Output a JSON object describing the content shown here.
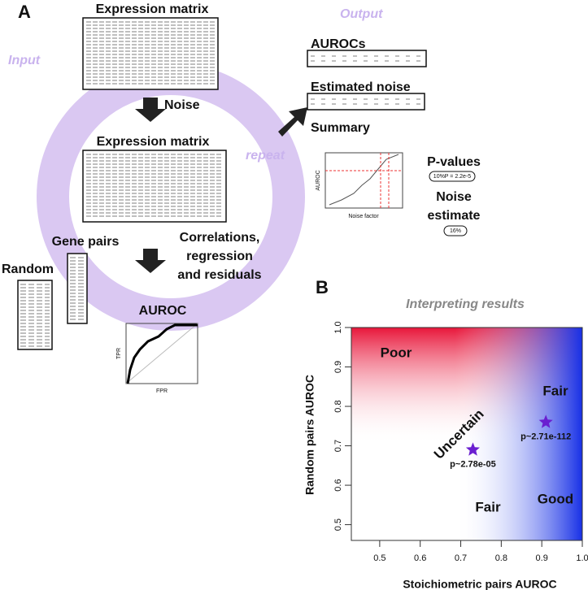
{
  "panel_a": {
    "label": "A",
    "input": "Input",
    "output": "Output",
    "repeat": "repeat",
    "expression_matrix_1": "Expression matrix",
    "noise": "Noise",
    "expression_matrix_2": "Expression matrix",
    "correlations": [
      "Correlations,",
      "regression",
      "and residuals"
    ],
    "gene_pairs": "Gene pairs",
    "random": "Random",
    "auroc": "AUROC",
    "roc_axes": {
      "x": "FPR",
      "y": "TPR"
    },
    "aurocs": "AUROCs",
    "estimated_noise": "Estimated noise",
    "summary": "Summary",
    "summary_axes": {
      "x": "Noise factor",
      "y": "AUROC"
    },
    "p_values": "P-values",
    "p_value": "10%P = 2.2e-5",
    "noise_estimate": [
      "Noise",
      "estimate"
    ],
    "noise_value": "16%"
  },
  "panel_b_label": "B",
  "chart_data": {
    "type": "scatter",
    "title": "Interpreting results",
    "x_label": "Stoichiometric pairs AUROC",
    "y_label": "Random pairs AUROC",
    "xlim": [
      0.43,
      1.0
    ],
    "ylim": [
      0.46,
      1.0
    ],
    "xticks": [
      0.5,
      0.6,
      0.7,
      0.8,
      0.9,
      {
        "value": 1,
        "label": "1.0"
      }
    ],
    "yticks": [
      0.5,
      0.6,
      0.7,
      0.8,
      0.9,
      {
        "value": 1,
        "label": "1.0"
      }
    ],
    "regions": [
      "Poor",
      "Fair",
      "Uncertain",
      "Fair",
      "Good"
    ],
    "series": [
      {
        "color": "#6a1fd0",
        "x": [
          0.73,
          0.91
        ],
        "values": [
          0.69,
          0.76
        ]
      }
    ],
    "annotations": [
      "p~2.78e-05",
      "p~2.71e-112"
    ]
  }
}
